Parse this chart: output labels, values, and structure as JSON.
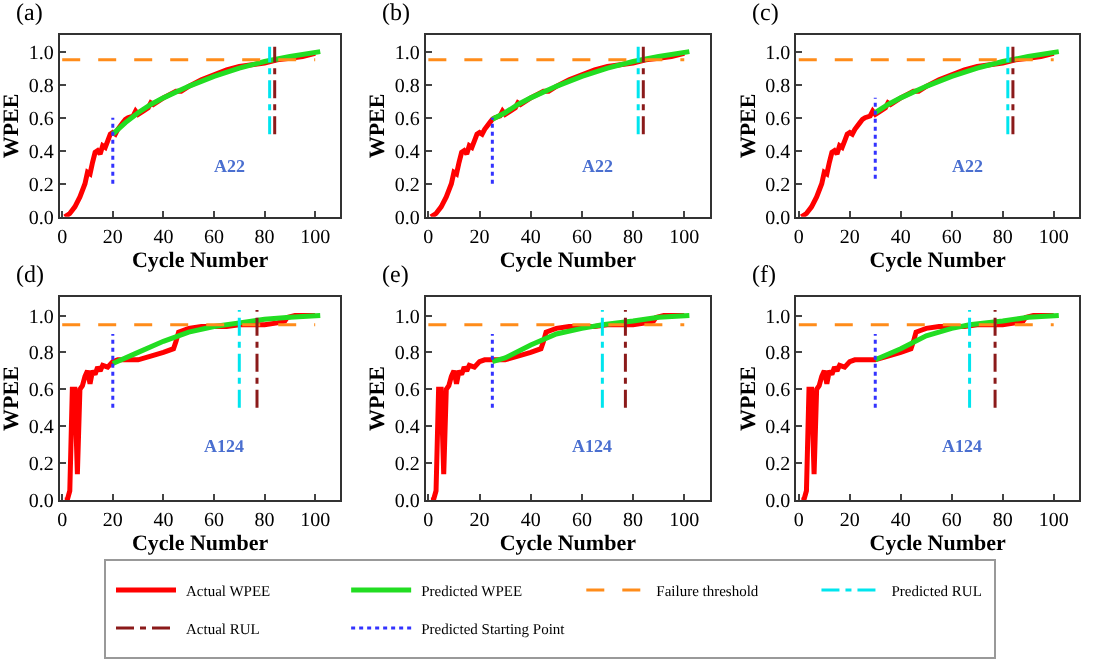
{
  "chart_data": [
    {
      "type": "line",
      "title": "(a)",
      "xlabel": "Cycle Number",
      "ylabel": "WPEE",
      "annotations": [
        "A22"
      ],
      "legend": "bottom",
      "xlim": [
        -1,
        110
      ],
      "ylim": [
        0,
        1.1
      ],
      "xticks": [
        0,
        20,
        40,
        60,
        80,
        100
      ],
      "yticks": [
        {
          "value": 0,
          "label": "0.0"
        },
        {
          "value": 0.2,
          "label": "0.2"
        },
        {
          "value": 0.4,
          "label": "0.4"
        },
        {
          "value": 0.6,
          "label": "0.6"
        },
        {
          "value": 0.8,
          "label": "0.8"
        },
        {
          "value": 1.0,
          "label": "1.0"
        }
      ],
      "series": [
        {
          "name": "Actual WPEE",
          "color": "#ff0000",
          "line_style": "solid",
          "x": [
            1,
            3,
            5,
            7,
            9,
            10,
            11,
            12,
            13,
            14,
            15,
            16,
            17,
            18,
            19,
            20,
            21,
            22,
            24,
            25,
            26,
            28,
            29,
            30,
            32,
            34,
            35,
            36,
            40,
            45,
            47,
            50,
            55,
            60,
            65,
            70,
            75,
            80,
            85,
            90,
            95,
            100
          ],
          "values": [
            0,
            0.02,
            0.06,
            0.12,
            0.2,
            0.27,
            0.26,
            0.33,
            0.39,
            0.4,
            0.38,
            0.43,
            0.42,
            0.46,
            0.5,
            0.51,
            0.5,
            0.53,
            0.57,
            0.59,
            0.6,
            0.61,
            0.64,
            0.62,
            0.64,
            0.66,
            0.69,
            0.68,
            0.72,
            0.76,
            0.76,
            0.79,
            0.83,
            0.86,
            0.89,
            0.91,
            0.92,
            0.93,
            0.95,
            0.96,
            0.97,
            0.99
          ]
        },
        {
          "name": "Predicted WPEE",
          "color": "#22dd22",
          "line_style": "solid",
          "x": [
            20,
            25,
            30,
            35,
            40,
            50,
            60,
            70,
            80,
            90,
            102
          ],
          "values": [
            0.5,
            0.57,
            0.63,
            0.68,
            0.72,
            0.79,
            0.85,
            0.9,
            0.94,
            0.97,
            1.0
          ]
        },
        {
          "name": "Failure threshold",
          "color": "#ff8c1a",
          "line_style": "dashed",
          "x": [
            0,
            100
          ],
          "values": [
            0.95,
            0.95
          ]
        },
        {
          "name": "Predicted RUL",
          "color": "#00e5ee",
          "line_style": "dashdot",
          "x": [
            82,
            82
          ],
          "values": [
            0.5,
            1.03
          ]
        },
        {
          "name": "Actual RUL",
          "color": "#8b1a1a",
          "line_style": "dashdot",
          "x": [
            84,
            84
          ],
          "values": [
            0.5,
            1.03
          ]
        },
        {
          "name": "Predicted Starting Point",
          "color": "#3333ff",
          "line_style": "dotted",
          "x": [
            20,
            20
          ],
          "values": [
            0.2,
            0.6
          ]
        }
      ]
    },
    {
      "type": "line",
      "title": "(b)",
      "xlabel": "Cycle Number",
      "ylabel": "WPEE",
      "annotations": [
        "A22"
      ],
      "xlim": [
        -1,
        110
      ],
      "ylim": [
        0,
        1.1
      ],
      "xticks": [
        0,
        20,
        40,
        60,
        80,
        100
      ],
      "yticks": [
        {
          "value": 0,
          "label": "0.0"
        },
        {
          "value": 0.2,
          "label": "0.2"
        },
        {
          "value": 0.4,
          "label": "0.4"
        },
        {
          "value": 0.6,
          "label": "0.6"
        },
        {
          "value": 0.8,
          "label": "0.8"
        },
        {
          "value": 1.0,
          "label": "1.0"
        }
      ],
      "series": [
        {
          "color": "#ff0000",
          "line_style": "solid",
          "x": [
            1,
            3,
            5,
            7,
            9,
            10,
            11,
            12,
            13,
            14,
            15,
            16,
            17,
            18,
            19,
            20,
            21,
            22,
            24,
            25,
            26,
            28,
            29,
            30,
            32,
            34,
            35,
            36,
            40,
            45,
            47,
            50,
            55,
            60,
            65,
            70,
            75,
            80,
            85,
            90,
            95,
            100
          ],
          "values": [
            0,
            0.02,
            0.06,
            0.12,
            0.2,
            0.27,
            0.26,
            0.33,
            0.39,
            0.4,
            0.38,
            0.43,
            0.42,
            0.46,
            0.5,
            0.51,
            0.5,
            0.53,
            0.57,
            0.59,
            0.6,
            0.61,
            0.64,
            0.62,
            0.64,
            0.66,
            0.69,
            0.68,
            0.72,
            0.76,
            0.76,
            0.79,
            0.83,
            0.86,
            0.89,
            0.91,
            0.92,
            0.93,
            0.95,
            0.96,
            0.97,
            0.99
          ]
        },
        {
          "color": "#22dd22",
          "line_style": "solid",
          "x": [
            25,
            30,
            35,
            40,
            50,
            60,
            70,
            80,
            90,
            102
          ],
          "values": [
            0.59,
            0.63,
            0.68,
            0.72,
            0.79,
            0.85,
            0.9,
            0.94,
            0.97,
            1.0
          ]
        },
        {
          "color": "#ff8c1a",
          "line_style": "dashed",
          "x": [
            0,
            100
          ],
          "values": [
            0.95,
            0.95
          ]
        },
        {
          "color": "#00e5ee",
          "line_style": "dashdot",
          "x": [
            82,
            82
          ],
          "values": [
            0.5,
            1.03
          ]
        },
        {
          "color": "#8b1a1a",
          "line_style": "dashdot",
          "x": [
            84,
            84
          ],
          "values": [
            0.5,
            1.03
          ]
        },
        {
          "color": "#3333ff",
          "line_style": "dotted",
          "x": [
            25,
            25
          ],
          "values": [
            0.2,
            0.6
          ]
        }
      ]
    },
    {
      "type": "line",
      "title": "(c)",
      "xlabel": "Cycle Number",
      "ylabel": "WPEE",
      "annotations": [
        "A22"
      ],
      "xlim": [
        -1,
        110
      ],
      "ylim": [
        0,
        1.1
      ],
      "xticks": [
        0,
        20,
        40,
        60,
        80,
        100
      ],
      "yticks": [
        {
          "value": 0,
          "label": "0.0"
        },
        {
          "value": 0.2,
          "label": "0.2"
        },
        {
          "value": 0.4,
          "label": "0.4"
        },
        {
          "value": 0.6,
          "label": "0.6"
        },
        {
          "value": 0.8,
          "label": "0.8"
        },
        {
          "value": 1.0,
          "label": "1.0"
        }
      ],
      "series": [
        {
          "color": "#ff0000",
          "line_style": "solid",
          "x": [
            1,
            3,
            5,
            7,
            9,
            10,
            11,
            12,
            13,
            14,
            15,
            16,
            17,
            18,
            19,
            20,
            21,
            22,
            24,
            25,
            26,
            28,
            29,
            30,
            32,
            34,
            35,
            36,
            40,
            45,
            47,
            50,
            55,
            60,
            65,
            70,
            75,
            80,
            85,
            90,
            95,
            100
          ],
          "values": [
            0,
            0.02,
            0.06,
            0.12,
            0.2,
            0.27,
            0.26,
            0.33,
            0.39,
            0.4,
            0.38,
            0.43,
            0.42,
            0.46,
            0.5,
            0.51,
            0.5,
            0.53,
            0.57,
            0.59,
            0.6,
            0.61,
            0.64,
            0.62,
            0.64,
            0.66,
            0.69,
            0.68,
            0.72,
            0.76,
            0.76,
            0.79,
            0.83,
            0.86,
            0.89,
            0.91,
            0.92,
            0.93,
            0.95,
            0.96,
            0.97,
            0.99
          ]
        },
        {
          "color": "#22dd22",
          "line_style": "solid",
          "x": [
            30,
            35,
            40,
            50,
            60,
            70,
            80,
            90,
            102
          ],
          "values": [
            0.63,
            0.68,
            0.72,
            0.79,
            0.85,
            0.9,
            0.94,
            0.97,
            1.0
          ]
        },
        {
          "color": "#ff8c1a",
          "line_style": "dashed",
          "x": [
            0,
            100
          ],
          "values": [
            0.95,
            0.95
          ]
        },
        {
          "color": "#00e5ee",
          "line_style": "dashdot",
          "x": [
            82,
            82
          ],
          "values": [
            0.5,
            1.03
          ]
        },
        {
          "color": "#8b1a1a",
          "line_style": "dashdot",
          "x": [
            84,
            84
          ],
          "values": [
            0.5,
            1.03
          ]
        },
        {
          "color": "#3333ff",
          "line_style": "dotted",
          "x": [
            30,
            30
          ],
          "values": [
            0.23,
            0.72
          ]
        }
      ]
    },
    {
      "type": "line",
      "title": "(d)",
      "xlabel": "Cycle Number",
      "ylabel": "WPEE",
      "annotations": [
        "A124"
      ],
      "xlim": [
        -1,
        110
      ],
      "ylim": [
        0,
        1.1
      ],
      "xticks": [
        0,
        20,
        40,
        60,
        80,
        100
      ],
      "yticks": [
        {
          "value": 0,
          "label": "0.0"
        },
        {
          "value": 0.2,
          "label": "0.2"
        },
        {
          "value": 0.4,
          "label": "0.4"
        },
        {
          "value": 0.6,
          "label": "0.6"
        },
        {
          "value": 0.8,
          "label": "0.8"
        },
        {
          "value": 1.0,
          "label": "1.0"
        }
      ],
      "series": [
        {
          "color": "#ff0000",
          "line_style": "solid",
          "x": [
            1,
            2,
            3,
            4,
            5,
            6,
            7,
            8,
            9,
            10,
            11,
            12,
            13,
            14,
            15,
            16,
            18,
            20,
            22,
            25,
            28,
            30,
            35,
            40,
            44,
            45,
            46,
            48,
            50,
            55,
            60,
            65,
            70,
            75,
            80,
            85,
            88,
            89,
            92,
            100
          ],
          "values": [
            0,
            0,
            0.05,
            0.6,
            0.6,
            0.14,
            0.6,
            0.62,
            0.67,
            0.7,
            0.63,
            0.7,
            0.68,
            0.72,
            0.7,
            0.73,
            0.72,
            0.75,
            0.76,
            0.76,
            0.76,
            0.76,
            0.78,
            0.8,
            0.82,
            0.86,
            0.91,
            0.92,
            0.93,
            0.94,
            0.94,
            0.94,
            0.95,
            0.95,
            0.95,
            0.96,
            0.97,
            0.99,
            1.0,
            1.0
          ]
        },
        {
          "color": "#22dd22",
          "line_style": "solid",
          "x": [
            20,
            30,
            40,
            50,
            60,
            70,
            80,
            90,
            102
          ],
          "values": [
            0.74,
            0.8,
            0.86,
            0.91,
            0.94,
            0.96,
            0.98,
            0.99,
            1.0
          ]
        },
        {
          "color": "#ff8c1a",
          "line_style": "dashed",
          "x": [
            0,
            100
          ],
          "values": [
            0.95,
            0.95
          ]
        },
        {
          "color": "#00e5ee",
          "line_style": "dashdot",
          "x": [
            70,
            70
          ],
          "values": [
            0.5,
            1.03
          ]
        },
        {
          "color": "#8b1a1a",
          "line_style": "dashdot",
          "x": [
            77,
            77
          ],
          "values": [
            0.5,
            1.03
          ]
        },
        {
          "color": "#3333ff",
          "line_style": "dotted",
          "x": [
            20,
            20
          ],
          "values": [
            0.5,
            0.9
          ]
        }
      ]
    },
    {
      "type": "line",
      "title": "(e)",
      "xlabel": "Cycle Number",
      "ylabel": "WPEE",
      "annotations": [
        "A124"
      ],
      "xlim": [
        -1,
        110
      ],
      "ylim": [
        0,
        1.1
      ],
      "xticks": [
        0,
        20,
        40,
        60,
        80,
        100
      ],
      "yticks": [
        {
          "value": 0,
          "label": "0.0"
        },
        {
          "value": 0.2,
          "label": "0.2"
        },
        {
          "value": 0.4,
          "label": "0.4"
        },
        {
          "value": 0.6,
          "label": "0.6"
        },
        {
          "value": 0.8,
          "label": "0.8"
        },
        {
          "value": 1.0,
          "label": "1.0"
        }
      ],
      "series": [
        {
          "color": "#ff0000",
          "line_style": "solid",
          "x": [
            1,
            2,
            3,
            4,
            5,
            6,
            7,
            8,
            9,
            10,
            11,
            12,
            13,
            14,
            15,
            16,
            18,
            20,
            22,
            25,
            28,
            30,
            35,
            40,
            44,
            45,
            46,
            48,
            50,
            55,
            60,
            65,
            70,
            75,
            80,
            85,
            88,
            89,
            92,
            100
          ],
          "values": [
            0,
            0,
            0.05,
            0.6,
            0.6,
            0.14,
            0.6,
            0.62,
            0.67,
            0.7,
            0.63,
            0.7,
            0.68,
            0.72,
            0.7,
            0.73,
            0.72,
            0.75,
            0.76,
            0.76,
            0.76,
            0.76,
            0.78,
            0.8,
            0.82,
            0.86,
            0.91,
            0.92,
            0.93,
            0.94,
            0.94,
            0.94,
            0.95,
            0.95,
            0.95,
            0.96,
            0.97,
            0.99,
            1.0,
            1.0
          ]
        },
        {
          "color": "#22dd22",
          "line_style": "solid",
          "x": [
            25,
            30,
            40,
            50,
            60,
            68,
            80,
            90,
            102
          ],
          "values": [
            0.75,
            0.77,
            0.84,
            0.9,
            0.93,
            0.95,
            0.97,
            0.99,
            1.0
          ]
        },
        {
          "color": "#ff8c1a",
          "line_style": "dashed",
          "x": [
            0,
            100
          ],
          "values": [
            0.95,
            0.95
          ]
        },
        {
          "color": "#00e5ee",
          "line_style": "dashdot",
          "x": [
            68,
            68
          ],
          "values": [
            0.5,
            1.03
          ]
        },
        {
          "color": "#8b1a1a",
          "line_style": "dashdot",
          "x": [
            77,
            77
          ],
          "values": [
            0.5,
            1.03
          ]
        },
        {
          "color": "#3333ff",
          "line_style": "dotted",
          "x": [
            25,
            25
          ],
          "values": [
            0.5,
            0.9
          ]
        }
      ]
    },
    {
      "type": "line",
      "title": "(f)",
      "xlabel": "Cycle Number",
      "ylabel": "WPEE",
      "annotations": [
        "A124"
      ],
      "xlim": [
        -1,
        110
      ],
      "ylim": [
        0,
        1.1
      ],
      "xticks": [
        0,
        20,
        40,
        60,
        80,
        100
      ],
      "yticks": [
        {
          "value": 0,
          "label": "0.0"
        },
        {
          "value": 0.2,
          "label": "0.2"
        },
        {
          "value": 0.4,
          "label": "0.4"
        },
        {
          "value": 0.6,
          "label": "0.6"
        },
        {
          "value": 0.8,
          "label": "0.8"
        },
        {
          "value": 1.0,
          "label": "1.0"
        }
      ],
      "series": [
        {
          "color": "#ff0000",
          "line_style": "solid",
          "x": [
            1,
            2,
            3,
            4,
            5,
            6,
            7,
            8,
            9,
            10,
            11,
            12,
            13,
            14,
            15,
            16,
            18,
            20,
            22,
            25,
            28,
            30,
            35,
            40,
            44,
            45,
            46,
            48,
            50,
            55,
            60,
            65,
            70,
            75,
            80,
            85,
            88,
            89,
            92,
            100
          ],
          "values": [
            0,
            0,
            0.05,
            0.6,
            0.6,
            0.14,
            0.6,
            0.62,
            0.67,
            0.7,
            0.63,
            0.7,
            0.68,
            0.72,
            0.7,
            0.73,
            0.72,
            0.75,
            0.76,
            0.76,
            0.76,
            0.76,
            0.78,
            0.8,
            0.82,
            0.86,
            0.91,
            0.92,
            0.93,
            0.94,
            0.94,
            0.94,
            0.95,
            0.95,
            0.95,
            0.96,
            0.97,
            0.99,
            1.0,
            1.0
          ]
        },
        {
          "color": "#22dd22",
          "line_style": "solid",
          "x": [
            30,
            40,
            50,
            60,
            67,
            80,
            90,
            102
          ],
          "values": [
            0.76,
            0.82,
            0.89,
            0.93,
            0.95,
            0.97,
            0.99,
            1.0
          ]
        },
        {
          "color": "#ff8c1a",
          "line_style": "dashed",
          "x": [
            0,
            100
          ],
          "values": [
            0.95,
            0.95
          ]
        },
        {
          "color": "#00e5ee",
          "line_style": "dashdot",
          "x": [
            67,
            67
          ],
          "values": [
            0.5,
            1.03
          ]
        },
        {
          "color": "#8b1a1a",
          "line_style": "dashdot",
          "x": [
            77,
            77
          ],
          "values": [
            0.5,
            1.03
          ]
        },
        {
          "color": "#3333ff",
          "line_style": "dotted",
          "x": [
            30,
            30
          ],
          "values": [
            0.5,
            0.9
          ]
        }
      ]
    }
  ]
}
